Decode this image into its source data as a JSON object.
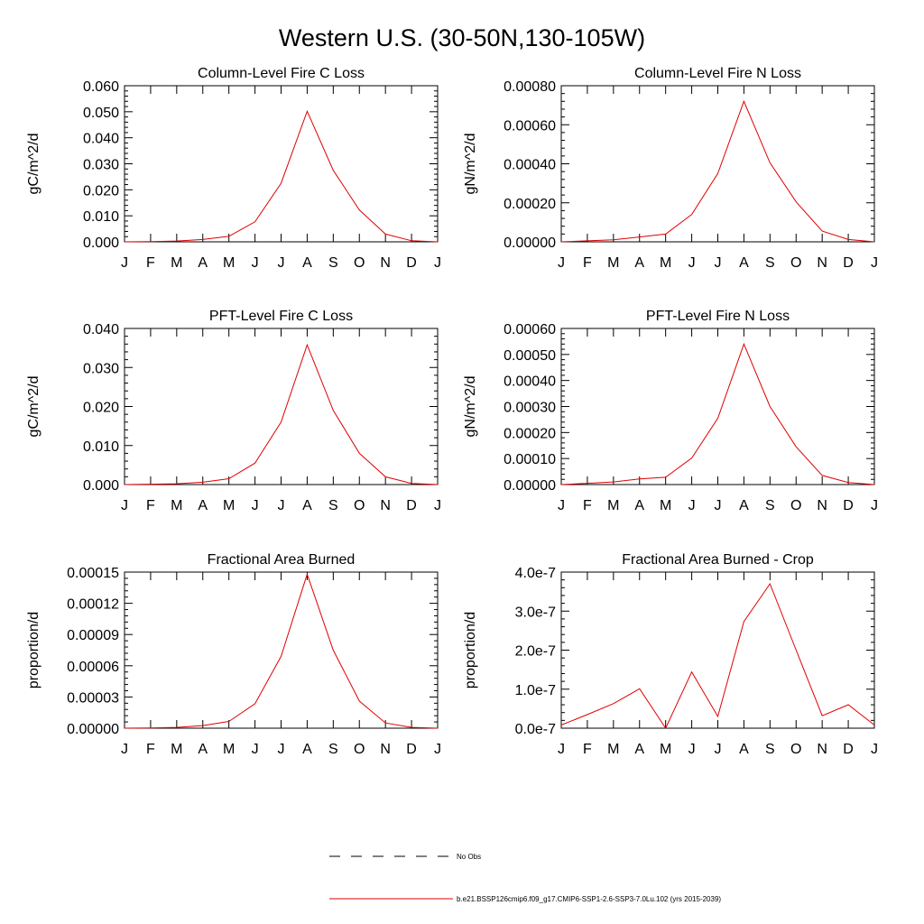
{
  "page": {
    "title": "Western U.S. (30-50N,130-105W)"
  },
  "colors": {
    "series": "#e00000",
    "axis": "#000000",
    "legend_dash": "#000000"
  },
  "legend": {
    "obs_label": "No Obs",
    "model_label": "b.e21.BSSP126cmip6.f09_g17.CMIP6-SSP1-2.6-SSP3-7.0Lu.102 (yrs 2015-2039)"
  },
  "chart_data": [
    {
      "type": "line",
      "title": "Column-Level Fire C Loss",
      "ylabel": "gC/m^2/d",
      "x": [
        "J",
        "F",
        "M",
        "A",
        "M",
        "J",
        "J",
        "A",
        "S",
        "O",
        "N",
        "D",
        "J"
      ],
      "ylim": [
        0,
        0.06
      ],
      "yticks": [
        "0.000",
        "0.010",
        "0.020",
        "0.030",
        "0.040",
        "0.050",
        "0.060"
      ],
      "series": [
        {
          "values": [
            0.0,
            0.0001,
            0.0003,
            0.0009,
            0.0021,
            0.0077,
            0.0225,
            0.0502,
            0.0275,
            0.0122,
            0.003,
            0.0004,
            0.0
          ]
        }
      ]
    },
    {
      "type": "line",
      "title": "Column-Level Fire N Loss",
      "ylabel": "gN/m^2/d",
      "x": [
        "J",
        "F",
        "M",
        "A",
        "M",
        "J",
        "J",
        "A",
        "S",
        "O",
        "N",
        "D",
        "J"
      ],
      "ylim": [
        0,
        0.0008
      ],
      "yticks": [
        "0.00000",
        "0.00020",
        "0.00040",
        "0.00060",
        "0.00080"
      ],
      "series": [
        {
          "values": [
            0.0,
            5e-06,
            1e-05,
            2.5e-05,
            4e-05,
            0.00014,
            0.00035,
            0.00072,
            0.000405,
            0.000205,
            5.5e-05,
            1.2e-05,
            0.0
          ]
        }
      ]
    },
    {
      "type": "line",
      "title": "PFT-Level Fire C Loss",
      "ylabel": "gC/m^2/d",
      "x": [
        "J",
        "F",
        "M",
        "A",
        "M",
        "J",
        "J",
        "A",
        "S",
        "O",
        "N",
        "D",
        "J"
      ],
      "ylim": [
        0,
        0.04
      ],
      "yticks": [
        "0.000",
        "0.010",
        "0.020",
        "0.030",
        "0.040"
      ],
      "series": [
        {
          "values": [
            0.0,
            0.0001,
            0.0002,
            0.0006,
            0.0015,
            0.0055,
            0.016,
            0.0358,
            0.019,
            0.008,
            0.002,
            0.0003,
            0.0
          ]
        }
      ]
    },
    {
      "type": "line",
      "title": "PFT-Level Fire N Loss",
      "ylabel": "gN/m^2/d",
      "x": [
        "J",
        "F",
        "M",
        "A",
        "M",
        "J",
        "J",
        "A",
        "S",
        "O",
        "N",
        "D",
        "J"
      ],
      "ylim": [
        0,
        0.0006
      ],
      "yticks": [
        "0.00000",
        "0.00010",
        "0.00020",
        "0.00030",
        "0.00040",
        "0.00050",
        "0.00060"
      ],
      "series": [
        {
          "values": [
            0.0,
            5e-06,
            1e-05,
            2.2e-05,
            2.8e-05,
            0.000102,
            0.000255,
            0.00054,
            0.0003,
            0.000145,
            3.5e-05,
            8e-06,
            0.0
          ]
        }
      ]
    },
    {
      "type": "line",
      "title": "Fractional Area Burned",
      "ylabel": "proportion/d",
      "x": [
        "J",
        "F",
        "M",
        "A",
        "M",
        "J",
        "J",
        "A",
        "S",
        "O",
        "N",
        "D",
        "J"
      ],
      "ylim": [
        0,
        0.00015
      ],
      "yticks": [
        "0.00000",
        "0.00003",
        "0.00006",
        "0.00009",
        "0.00012",
        "0.00015"
      ],
      "series": [
        {
          "values": [
            0.0,
            3e-07,
            8e-07,
            2.5e-06,
            6.5e-06,
            2.35e-05,
            6.9e-05,
            0.000148,
            7.5e-05,
            2.6e-05,
            5e-06,
            8e-07,
            0.0
          ]
        }
      ]
    },
    {
      "type": "line",
      "title": "Fractional Area Burned - Crop",
      "ylabel": "proportion/d",
      "x": [
        "J",
        "F",
        "M",
        "A",
        "M",
        "J",
        "J",
        "A",
        "S",
        "O",
        "N",
        "D",
        "J"
      ],
      "ylim": [
        0,
        4e-07
      ],
      "yticks": [
        "0.0e-7",
        "1.0e-7",
        "2.0e-7",
        "3.0e-7",
        "4.0e-7"
      ],
      "series": [
        {
          "values": [
            8e-09,
            3.5e-08,
            6.3e-08,
            1.01e-07,
            0.0,
            1.44e-07,
            3e-08,
            2.73e-07,
            3.7e-07,
            2e-07,
            3.2e-08,
            6e-08,
            8e-09
          ]
        }
      ]
    }
  ]
}
